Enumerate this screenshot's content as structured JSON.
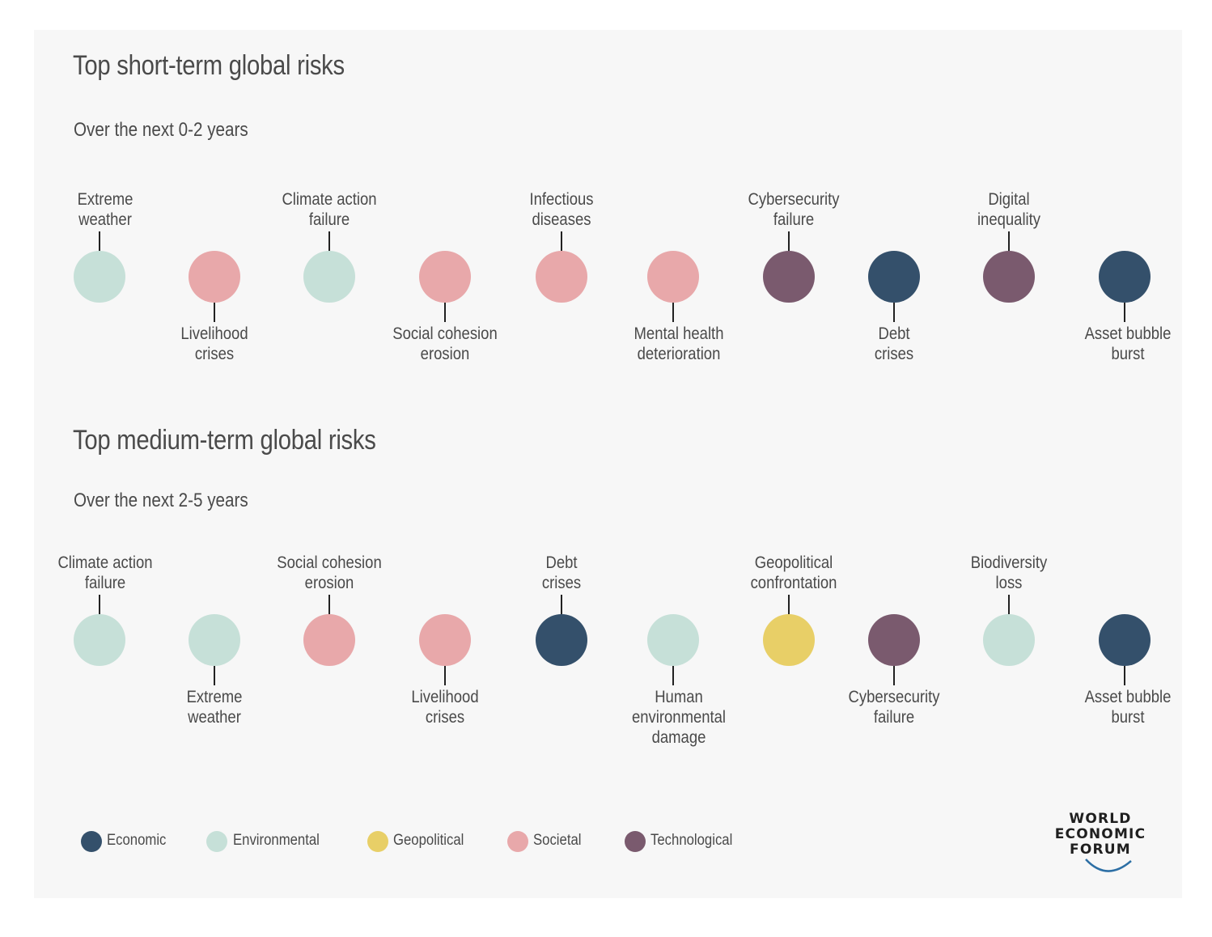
{
  "short_term": {
    "title": "Top short-term global risks",
    "subtitle": "Over the next 0-2 years",
    "risks": [
      {
        "label": "Extreme\nweather",
        "category": "Environmental",
        "label_position": "above"
      },
      {
        "label": "Livelihood\ncrises",
        "category": "Societal",
        "label_position": "below"
      },
      {
        "label": "Climate action\nfailure",
        "category": "Environmental",
        "label_position": "above"
      },
      {
        "label": "Social cohesion\nerosion",
        "category": "Societal",
        "label_position": "below"
      },
      {
        "label": "Infectious\ndiseases",
        "category": "Societal",
        "label_position": "above"
      },
      {
        "label": "Mental health\ndeterioration",
        "category": "Societal",
        "label_position": "below"
      },
      {
        "label": "Cybersecurity\nfailure",
        "category": "Technological",
        "label_position": "above"
      },
      {
        "label": "Debt\ncrises",
        "category": "Economic",
        "label_position": "below"
      },
      {
        "label": "Digital\ninequality",
        "category": "Technological",
        "label_position": "above"
      },
      {
        "label": "Asset bubble\nburst",
        "category": "Economic",
        "label_position": "below"
      }
    ]
  },
  "medium_term": {
    "title": "Top medium-term global risks",
    "subtitle": "Over the next 2-5 years",
    "risks": [
      {
        "label": "Climate action\nfailure",
        "category": "Environmental",
        "label_position": "above"
      },
      {
        "label": "Extreme\nweather",
        "category": "Environmental",
        "label_position": "below"
      },
      {
        "label": "Social cohesion\nerosion",
        "category": "Societal",
        "label_position": "above"
      },
      {
        "label": "Livelihood\ncrises",
        "category": "Societal",
        "label_position": "below"
      },
      {
        "label": "Debt\ncrises",
        "category": "Economic",
        "label_position": "above"
      },
      {
        "label": "Human\nenvironmental\ndamage",
        "category": "Environmental",
        "label_position": "below"
      },
      {
        "label": "Geopolitical\nconfrontation",
        "category": "Geopolitical",
        "label_position": "above"
      },
      {
        "label": "Cybersecurity\nfailure",
        "category": "Technological",
        "label_position": "below"
      },
      {
        "label": "Biodiversity\nloss",
        "category": "Environmental",
        "label_position": "above"
      },
      {
        "label": "Asset bubble\nburst",
        "category": "Economic",
        "label_position": "below"
      }
    ]
  },
  "legend": [
    {
      "label": "Economic",
      "category": "Economic"
    },
    {
      "label": "Environmental",
      "category": "Environmental"
    },
    {
      "label": "Geopolitical",
      "category": "Geopolitical"
    },
    {
      "label": "Societal",
      "category": "Societal"
    },
    {
      "label": "Technological",
      "category": "Technological"
    }
  ],
  "colors": {
    "Economic": "#34506b",
    "Environmental": "#c6e0d8",
    "Geopolitical": "#e8cf67",
    "Societal": "#e8a8aa",
    "Technological": "#7a5a6e",
    "arc": "#2d6fa5"
  },
  "logo": {
    "line1": "WORLD",
    "line2": "ECONOMIC",
    "line3": "FORUM"
  }
}
